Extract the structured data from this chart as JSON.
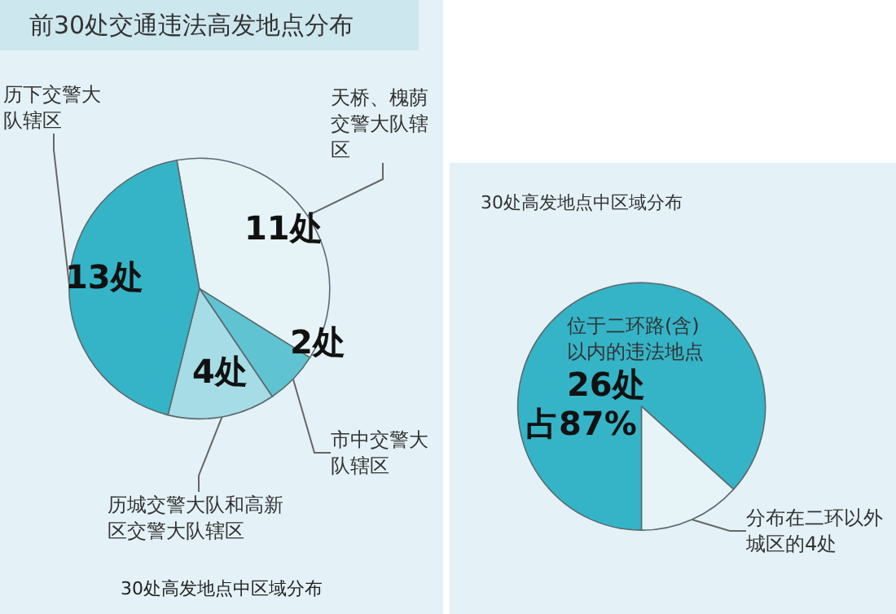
{
  "chart_data": [
    {
      "type": "pie",
      "title": "前30处交通违法高发地点分布",
      "categories": [
        "天桥、槐荫交警大队辖区",
        "市中交警大队辖区",
        "历城交警大队和高新区交警大队辖区",
        "历下交警大队辖区"
      ],
      "values": [
        11,
        2,
        4,
        13
      ],
      "colors": [
        "#e6f3f7",
        "#5fc3d1",
        "#a6dce5",
        "#35b4c7"
      ],
      "value_labels": [
        "11处",
        "2处",
        "4处",
        "13处"
      ],
      "annotations": [
        "30处高发地点中区域分布"
      ]
    },
    {
      "type": "pie",
      "title": "30处高发地点中区域分布",
      "categories": [
        "位于二环路(含)以内的违法地点",
        "分布在二环以外城区的4处"
      ],
      "values": [
        26,
        4
      ],
      "colors": [
        "#35b4c7",
        "#e6f3f7"
      ],
      "value_labels": [
        "26处",
        null
      ],
      "annotations": [
        "占87%"
      ]
    }
  ]
}
